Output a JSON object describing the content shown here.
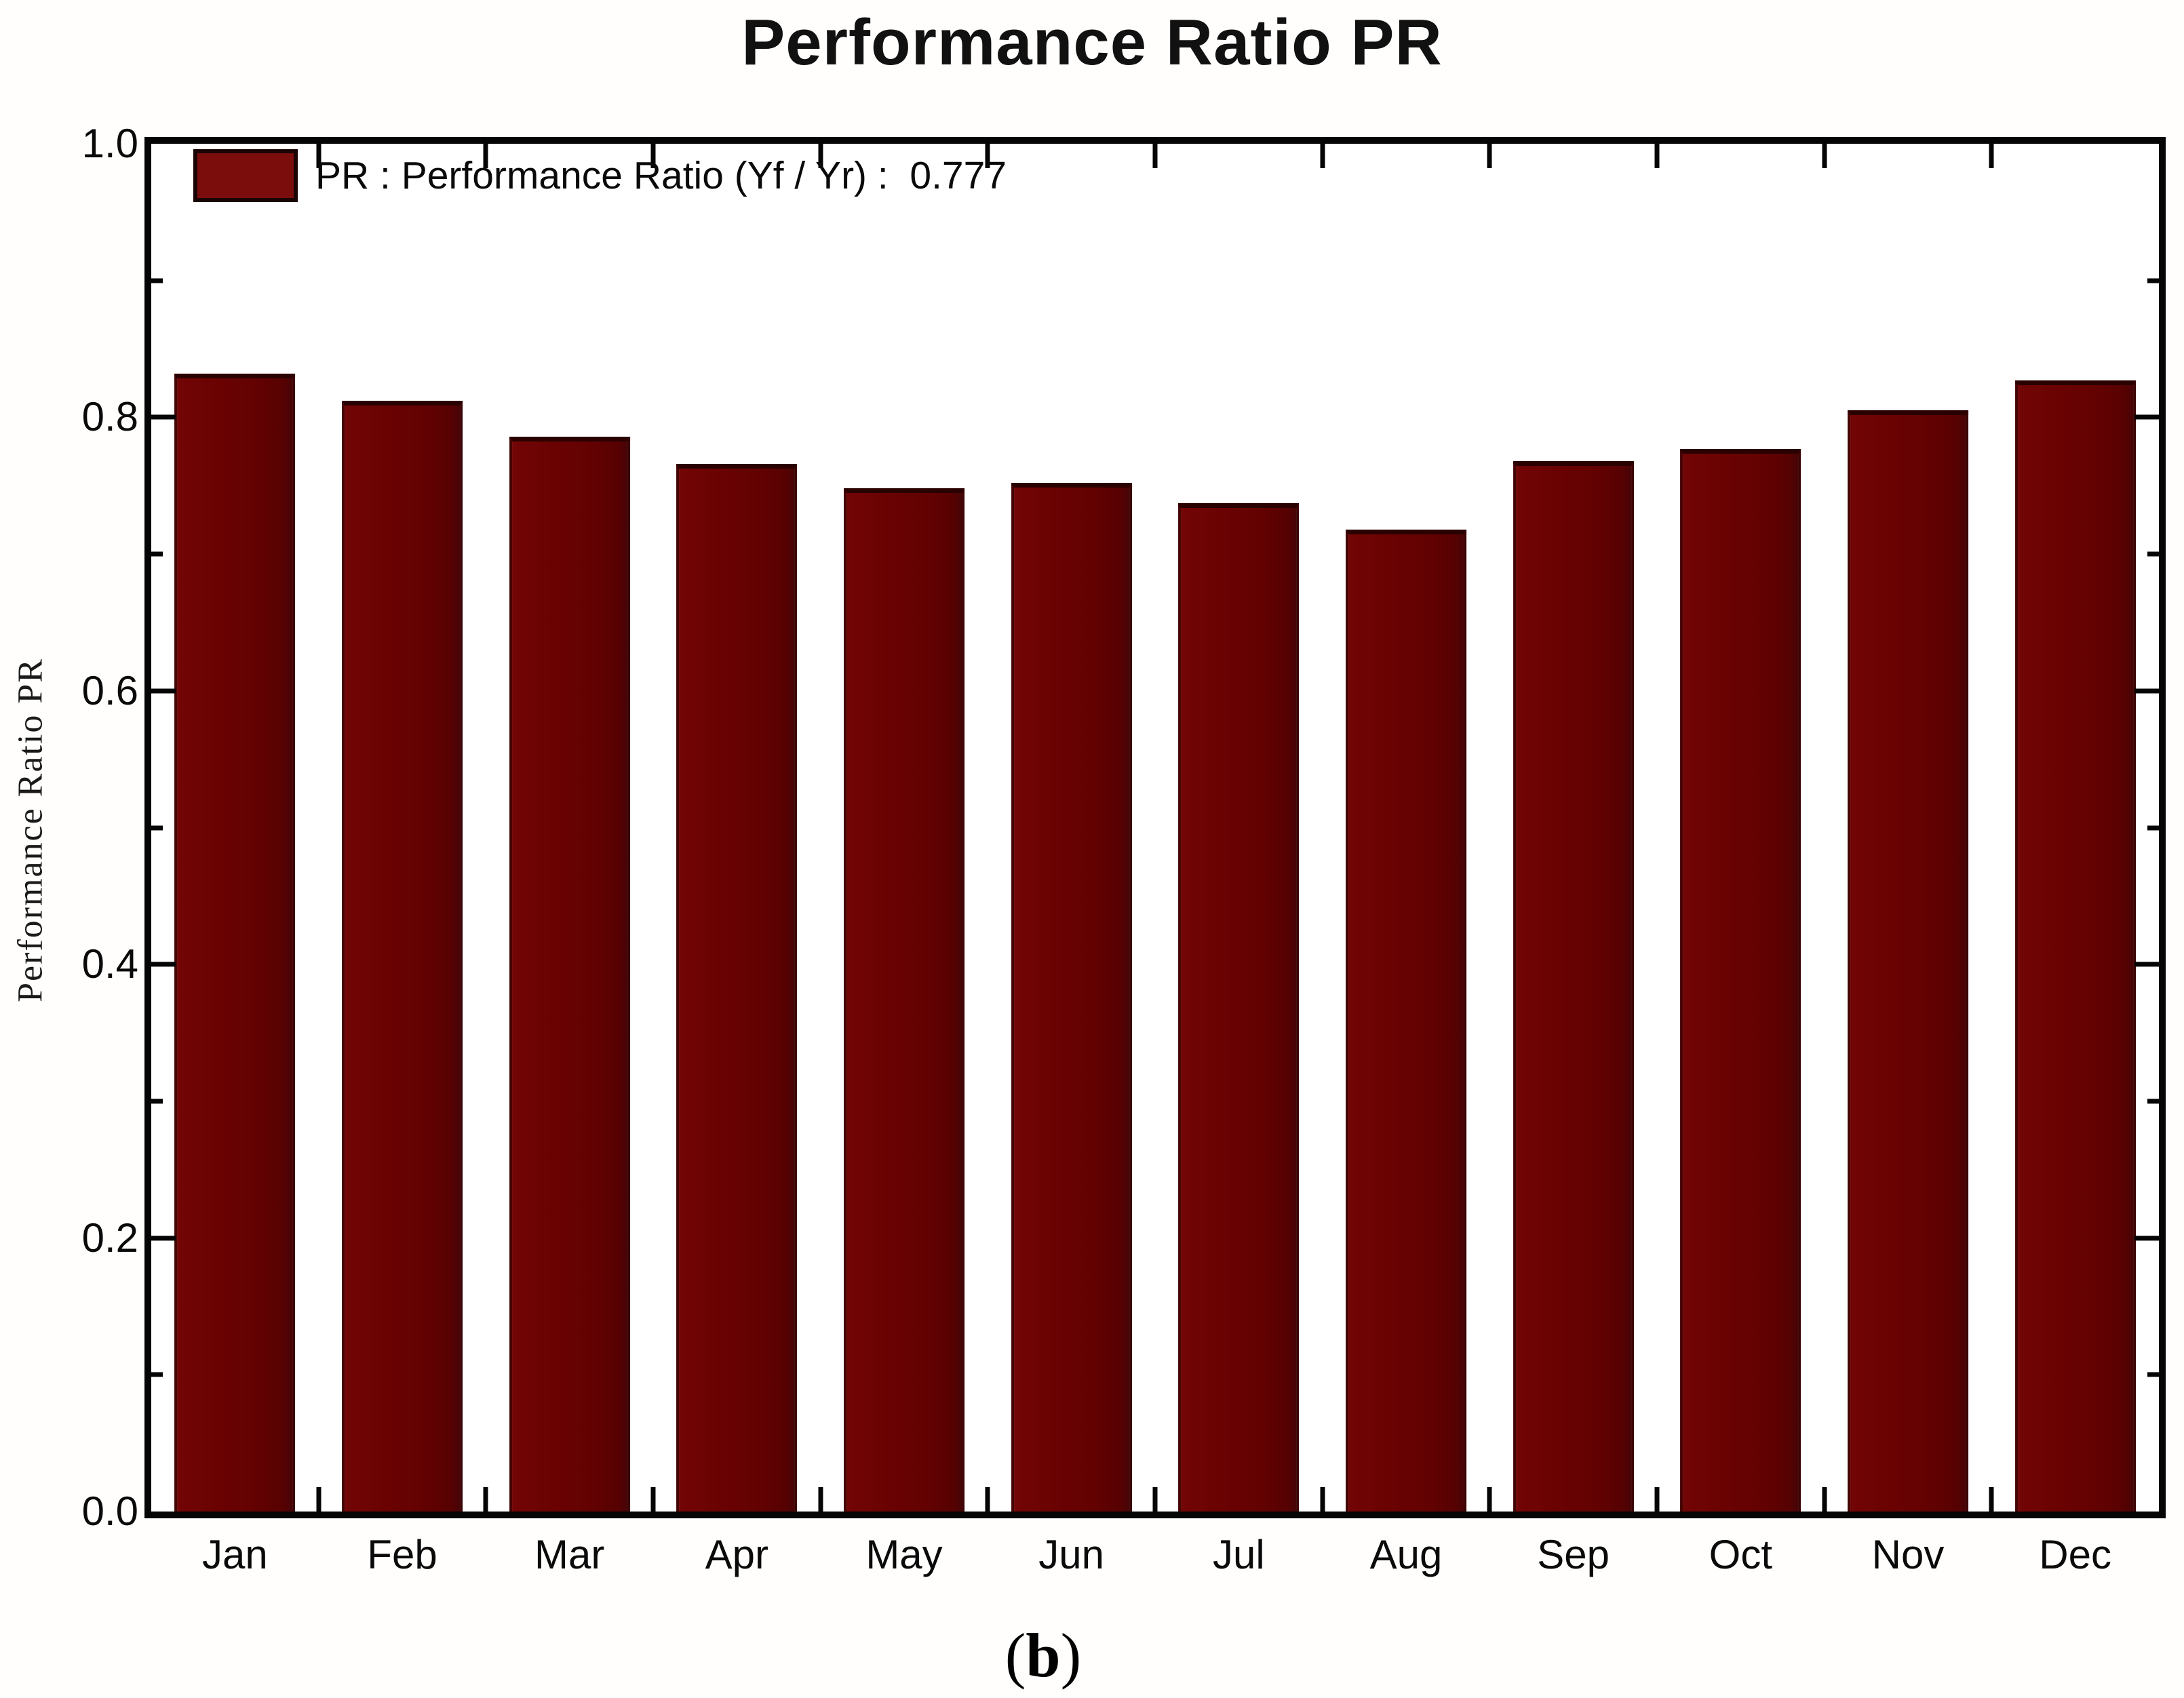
{
  "chart": {
    "title": "Performance Ratio PR",
    "ylabel": "Performance Ratio PR",
    "legend_label": "PR : Performance Ratio (Yf / Yr) :  0.777",
    "caption": {
      "open": "(",
      "letter": "b",
      "close": ")"
    }
  },
  "chart_data": {
    "type": "bar",
    "title": "Performance Ratio PR",
    "xlabel": "",
    "ylabel": "Performance Ratio PR",
    "categories": [
      "Jan",
      "Feb",
      "Mar",
      "Apr",
      "May",
      "Jun",
      "Jul",
      "Aug",
      "Sep",
      "Oct",
      "Nov",
      "Dec"
    ],
    "values": [
      0.832,
      0.812,
      0.786,
      0.766,
      0.748,
      0.752,
      0.737,
      0.718,
      0.768,
      0.777,
      0.805,
      0.827
    ],
    "ylim": [
      0.0,
      1.0
    ],
    "y_major_tick_labels": [
      "0.0",
      "0.2",
      "0.4",
      "0.6",
      "0.8",
      "1.0"
    ],
    "y_minor_tick_step": 0.1,
    "grid": false,
    "bar_color": "#690202",
    "legend": [
      {
        "label": "PR : Performance Ratio (Yf / Yr) :  0.777",
        "color": "#7b0d0d"
      }
    ],
    "legend_position": "top-left",
    "annotations": []
  }
}
